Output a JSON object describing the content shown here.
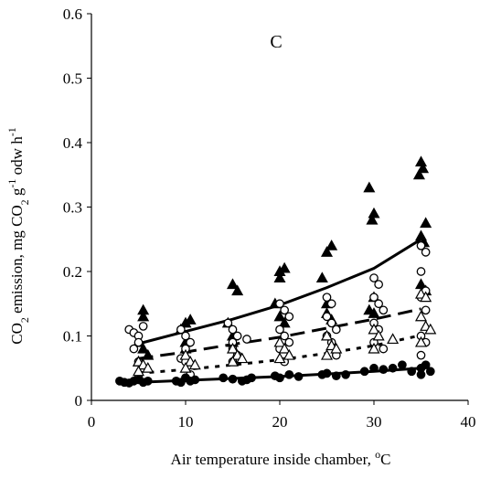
{
  "chart_data": {
    "type": "scatter",
    "panel_label": "C",
    "xlabel": "Air temperature inside chamber, °C",
    "ylabel": "CO2 emission, mg CO2 g-1 odw h-1",
    "xlim": [
      0,
      40
    ],
    "ylim": [
      0,
      0.6
    ],
    "xticks": [
      0,
      10,
      20,
      30,
      40
    ],
    "yticks": [
      0,
      0.1,
      0.2,
      0.3,
      0.4,
      0.5,
      0.6
    ],
    "ytick_labels": [
      "0",
      "0.1",
      "0.2",
      "0.3",
      "0.4",
      "0.5",
      "0.6"
    ],
    "grid": false,
    "legend": "none",
    "series": [
      {
        "marker": "filled-triangle",
        "points": [
          [
            5.5,
            0.14
          ],
          [
            5.5,
            0.13
          ],
          [
            5,
            0.09
          ],
          [
            5.5,
            0.08
          ],
          [
            6,
            0.07
          ],
          [
            5,
            0.06
          ],
          [
            10,
            0.12
          ],
          [
            10.5,
            0.125
          ],
          [
            9.5,
            0.11
          ],
          [
            10,
            0.09
          ],
          [
            10,
            0.08
          ],
          [
            15,
            0.18
          ],
          [
            15.5,
            0.17
          ],
          [
            14.5,
            0.12
          ],
          [
            15,
            0.1
          ],
          [
            15,
            0.09
          ],
          [
            20,
            0.2
          ],
          [
            20.5,
            0.205
          ],
          [
            20,
            0.19
          ],
          [
            19.5,
            0.15
          ],
          [
            20,
            0.13
          ],
          [
            20.5,
            0.12
          ],
          [
            25,
            0.23
          ],
          [
            25.5,
            0.24
          ],
          [
            24.5,
            0.19
          ],
          [
            25,
            0.15
          ],
          [
            25,
            0.135
          ],
          [
            25.5,
            0.125
          ],
          [
            29.5,
            0.33
          ],
          [
            30,
            0.29
          ],
          [
            29.8,
            0.28
          ],
          [
            30,
            0.16
          ],
          [
            29.5,
            0.14
          ],
          [
            30,
            0.135
          ],
          [
            35,
            0.37
          ],
          [
            35.2,
            0.36
          ],
          [
            34.8,
            0.35
          ],
          [
            35.5,
            0.275
          ],
          [
            35,
            0.255
          ],
          [
            35.3,
            0.245
          ],
          [
            35,
            0.18
          ],
          [
            35.5,
            0.17
          ]
        ],
        "fit": "exponential",
        "fit_line": "solid",
        "fit_points": [
          [
            5,
            0.088
          ],
          [
            10,
            0.107
          ],
          [
            15,
            0.126
          ],
          [
            20,
            0.148
          ],
          [
            25,
            0.175
          ],
          [
            30,
            0.205
          ],
          [
            35,
            0.25
          ]
        ]
      },
      {
        "marker": "open-circle",
        "points": [
          [
            4,
            0.11
          ],
          [
            4.5,
            0.105
          ],
          [
            5,
            0.1
          ],
          [
            5.5,
            0.115
          ],
          [
            5,
            0.09
          ],
          [
            4.5,
            0.08
          ],
          [
            5,
            0.06
          ],
          [
            5.5,
            0.05
          ],
          [
            5,
            0.04
          ],
          [
            5,
            0.035
          ],
          [
            9.5,
            0.11
          ],
          [
            10,
            0.1
          ],
          [
            10.5,
            0.09
          ],
          [
            10,
            0.08
          ],
          [
            9.5,
            0.065
          ],
          [
            10,
            0.06
          ],
          [
            10.5,
            0.04
          ],
          [
            10,
            0.035
          ],
          [
            14.5,
            0.12
          ],
          [
            15,
            0.11
          ],
          [
            15.5,
            0.1
          ],
          [
            15,
            0.09
          ],
          [
            16.5,
            0.095
          ],
          [
            15,
            0.08
          ],
          [
            15.5,
            0.07
          ],
          [
            15,
            0.06
          ],
          [
            20,
            0.15
          ],
          [
            20.5,
            0.14
          ],
          [
            21,
            0.13
          ],
          [
            20,
            0.11
          ],
          [
            20.5,
            0.1
          ],
          [
            21,
            0.09
          ],
          [
            20,
            0.08
          ],
          [
            20.5,
            0.06
          ],
          [
            25,
            0.16
          ],
          [
            25.5,
            0.15
          ],
          [
            25,
            0.13
          ],
          [
            25.5,
            0.12
          ],
          [
            26,
            0.11
          ],
          [
            25,
            0.1
          ],
          [
            25.5,
            0.09
          ],
          [
            26,
            0.07
          ],
          [
            30,
            0.19
          ],
          [
            30.5,
            0.18
          ],
          [
            30,
            0.16
          ],
          [
            30.5,
            0.15
          ],
          [
            31,
            0.14
          ],
          [
            30,
            0.12
          ],
          [
            30.5,
            0.11
          ],
          [
            30,
            0.09
          ],
          [
            31,
            0.08
          ],
          [
            35,
            0.24
          ],
          [
            35.5,
            0.23
          ],
          [
            35,
            0.2
          ],
          [
            35.5,
            0.17
          ],
          [
            35,
            0.16
          ],
          [
            35.5,
            0.14
          ],
          [
            35,
            0.1
          ],
          [
            35.5,
            0.09
          ],
          [
            35,
            0.07
          ]
        ],
        "fit": "exponential",
        "fit_line": "dashed",
        "fit_points": [
          [
            5,
            0.065
          ],
          [
            10,
            0.075
          ],
          [
            15,
            0.087
          ],
          [
            20,
            0.098
          ],
          [
            25,
            0.112
          ],
          [
            30,
            0.126
          ],
          [
            35,
            0.142
          ]
        ]
      },
      {
        "marker": "open-triangle",
        "points": [
          [
            5,
            0.06
          ],
          [
            5.5,
            0.055
          ],
          [
            5,
            0.045
          ],
          [
            6,
            0.05
          ],
          [
            10,
            0.07
          ],
          [
            10.5,
            0.06
          ],
          [
            10,
            0.05
          ],
          [
            11,
            0.055
          ],
          [
            15,
            0.08
          ],
          [
            15.5,
            0.07
          ],
          [
            15,
            0.06
          ],
          [
            16,
            0.065
          ],
          [
            20,
            0.09
          ],
          [
            20.5,
            0.08
          ],
          [
            20,
            0.065
          ],
          [
            21,
            0.07
          ],
          [
            25,
            0.1
          ],
          [
            25.5,
            0.085
          ],
          [
            25,
            0.07
          ],
          [
            26,
            0.08
          ],
          [
            30,
            0.11
          ],
          [
            30.5,
            0.1
          ],
          [
            32,
            0.095
          ],
          [
            30,
            0.08
          ],
          [
            35,
            0.165
          ],
          [
            35.5,
            0.16
          ],
          [
            35,
            0.13
          ],
          [
            35.5,
            0.115
          ],
          [
            36,
            0.11
          ],
          [
            35,
            0.09
          ]
        ],
        "fit": "exponential",
        "fit_line": "dotted",
        "fit_points": [
          [
            5,
            0.042
          ],
          [
            10,
            0.048
          ],
          [
            15,
            0.055
          ],
          [
            20,
            0.063
          ],
          [
            25,
            0.073
          ],
          [
            30,
            0.085
          ],
          [
            35,
            0.101
          ]
        ]
      },
      {
        "marker": "filled-circle",
        "points": [
          [
            3,
            0.03
          ],
          [
            3.5,
            0.028
          ],
          [
            4,
            0.027
          ],
          [
            4.5,
            0.03
          ],
          [
            5,
            0.032
          ],
          [
            5.5,
            0.028
          ],
          [
            6,
            0.03
          ],
          [
            9,
            0.03
          ],
          [
            9.5,
            0.028
          ],
          [
            10,
            0.035
          ],
          [
            10.5,
            0.03
          ],
          [
            11,
            0.032
          ],
          [
            14,
            0.035
          ],
          [
            15,
            0.033
          ],
          [
            16,
            0.03
          ],
          [
            16.5,
            0.032
          ],
          [
            17,
            0.035
          ],
          [
            19.5,
            0.038
          ],
          [
            20,
            0.035
          ],
          [
            21,
            0.04
          ],
          [
            22,
            0.037
          ],
          [
            24.5,
            0.04
          ],
          [
            25,
            0.042
          ],
          [
            26,
            0.038
          ],
          [
            27,
            0.04
          ],
          [
            29,
            0.045
          ],
          [
            30,
            0.05
          ],
          [
            31,
            0.048
          ],
          [
            32,
            0.05
          ],
          [
            33,
            0.055
          ],
          [
            34,
            0.045
          ],
          [
            35,
            0.05
          ],
          [
            35.5,
            0.055
          ],
          [
            36,
            0.045
          ],
          [
            35,
            0.04
          ]
        ],
        "fit": "exponential",
        "fit_line": "solid",
        "fit_points": [
          [
            5,
            0.028
          ],
          [
            10,
            0.031
          ],
          [
            15,
            0.034
          ],
          [
            20,
            0.037
          ],
          [
            25,
            0.041
          ],
          [
            30,
            0.045
          ],
          [
            35,
            0.05
          ]
        ]
      }
    ]
  }
}
